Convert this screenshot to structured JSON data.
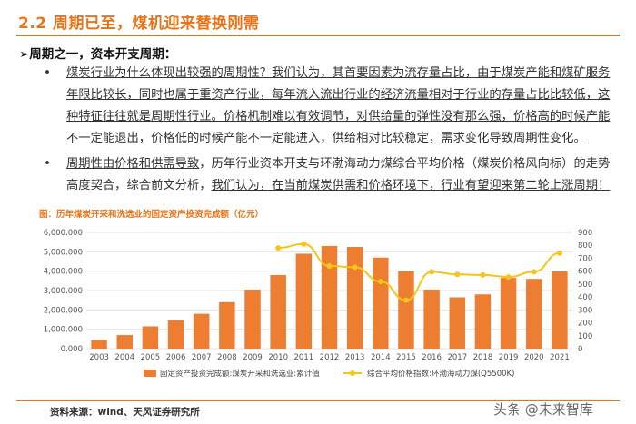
{
  "header": {
    "title": "2.2 周期已至，煤机迎来替换刚需"
  },
  "section": {
    "subtitle": "➢周期之一，资本开支周期：",
    "bullet_glyph": "•",
    "para1": "煤炭行业为什么体现出较强的周期性？我们认为，其首要因素为流存量占比，由于煤炭产能和煤矿服务年限比较长，同时也属于重资产行业，每年流入流出行业的经济流量相对于行业的存量占比比较低，这种特征往往就是周期性行业。价格机制难以有效调节，对供给量的弹性没有那么强，价格高的时候产能不一定能退出，价格低的时候产能不一定能进入，供给相对比较稳定，需求变化导致周期性变化。",
    "para2_underlined": "周期性由价格和供需导致",
    "para2_mid": "，历年行业资本开支与环渤海动力煤综合平均价格（煤炭价格风向标）的走势高度契合，综合前文分析，",
    "para2_tail": "我们认为，在当前煤炭供需和价格环境下，行业有望迎来第二轮上涨周期！"
  },
  "chart_caption": "图：历年煤炭开采和洗选业的固定资产投资完成额（亿元）",
  "chart_data": {
    "type": "bar",
    "categories": [
      "2003",
      "2004",
      "2005",
      "2006",
      "2007",
      "2008",
      "2009",
      "2010",
      "2011",
      "2012",
      "2013",
      "2014",
      "2015",
      "2016",
      "2017",
      "2018",
      "2019",
      "2020",
      "2021"
    ],
    "series": [
      {
        "name": "固定资产投资完成额:煤炭开采和洗选业:累计值",
        "type": "bar",
        "axis": "left",
        "color": "#ed7d31",
        "values": [
          440,
          700,
          1150,
          1460,
          1800,
          2400,
          3050,
          3800,
          4900,
          5300,
          5250,
          4700,
          4000,
          3050,
          2650,
          2800,
          3650,
          3600,
          4000
        ]
      },
      {
        "name": "综合平均价格指数:环渤海动力煤(Q5500K)",
        "type": "line",
        "axis": "right",
        "color": "#f5c518",
        "values": [
          null,
          null,
          null,
          null,
          null,
          null,
          null,
          780,
          810,
          640,
          630,
          520,
          375,
          595,
          575,
          570,
          555,
          595,
          740
        ]
      }
    ],
    "ylim_left": [
      0,
      6000
    ],
    "ylim_right": [
      0,
      900
    ],
    "yticks_left": [
      "0.000",
      "1,000.000",
      "2,000.000",
      "3,000.000",
      "4,000.000",
      "5,000.000",
      "6,000.000"
    ],
    "yticks_right": [
      "0",
      "100",
      "200",
      "300",
      "400",
      "500",
      "600",
      "700",
      "800",
      "900"
    ],
    "legend_position": "bottom",
    "grid": true
  },
  "footer": {
    "source": "资料来源：wind、天风证券研究所",
    "watermark": "未来智库",
    "watermark2": "头条 @未来智库"
  }
}
